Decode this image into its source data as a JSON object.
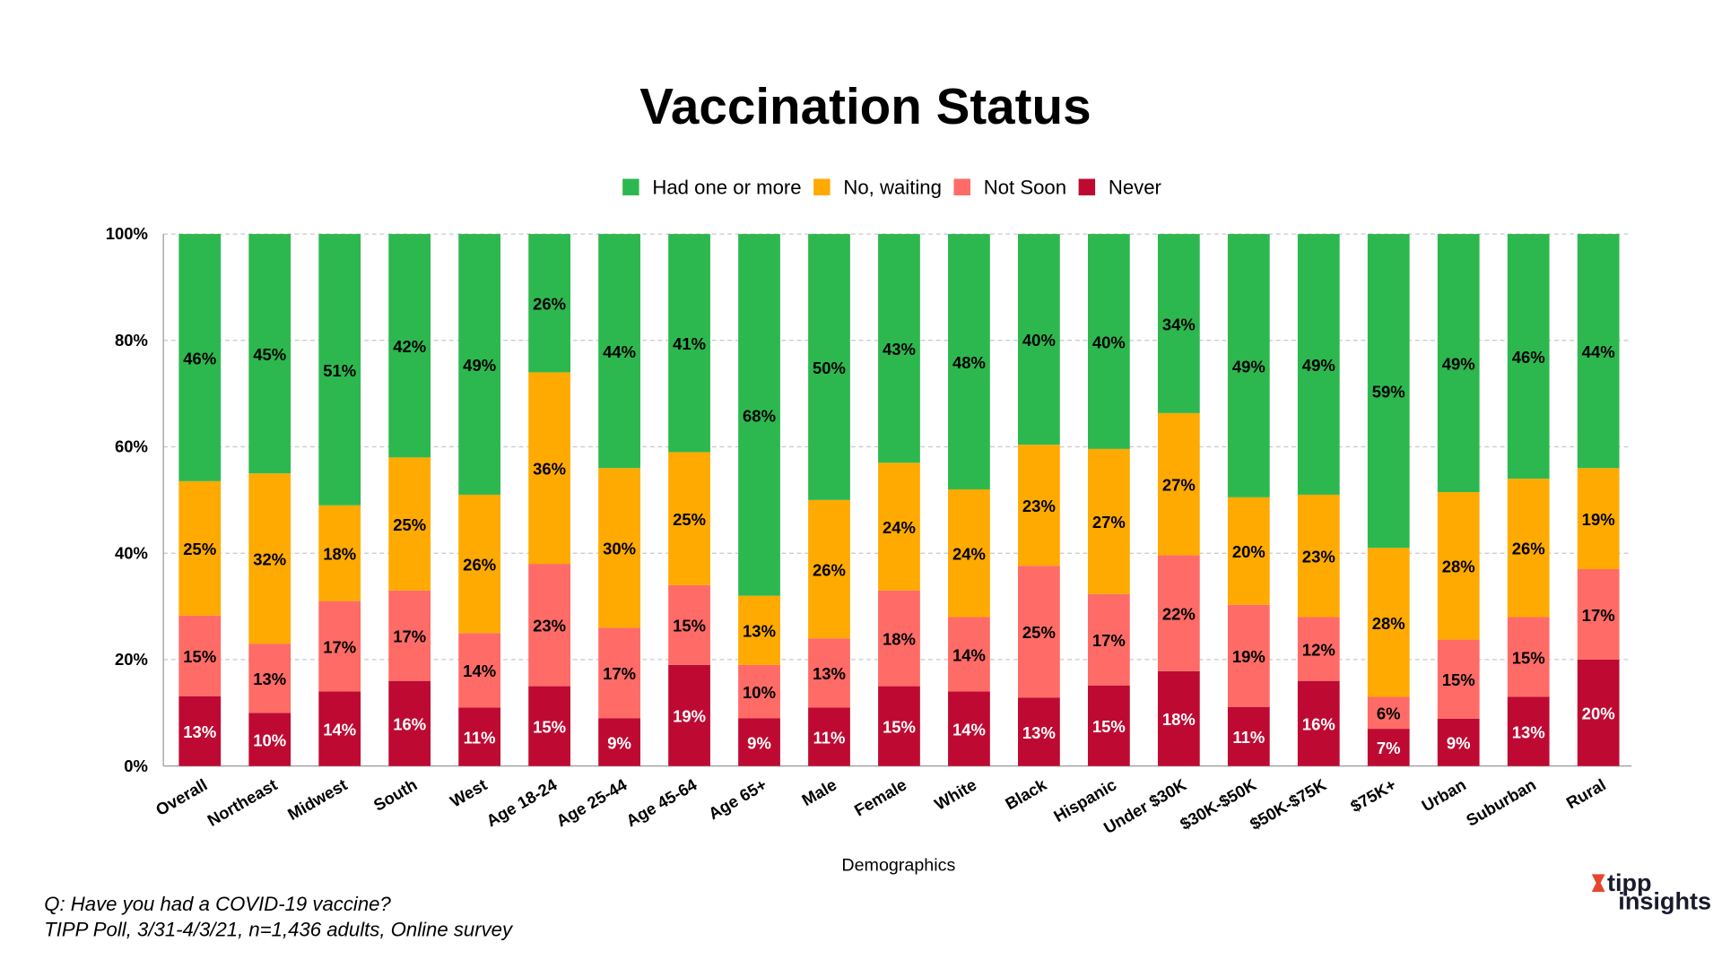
{
  "chart_data": {
    "type": "bar",
    "stacked": true,
    "title": "Vaccination Status",
    "xlabel": "Demographics",
    "ylabel": "",
    "ylim": [
      0,
      100
    ],
    "yticks": [
      "0%",
      "20%",
      "40%",
      "60%",
      "80%",
      "100%"
    ],
    "grid": true,
    "legend_position": "top",
    "categories": [
      "Overall",
      "Northeast",
      "Midwest",
      "South",
      "West",
      "Age 18-24",
      "Age 25-44",
      "Age 45-64",
      "Age 65+",
      "Male",
      "Female",
      "White",
      "Black",
      "Hispanic",
      "Under $30K",
      "$30K-$50K",
      "$50K-$75K",
      "$75K+",
      "Urban",
      "Suburban",
      "Rural"
    ],
    "series": [
      {
        "name": "Had one or more",
        "color": "#2DB84F",
        "label_color": "#000000",
        "values": [
          46,
          45,
          51,
          42,
          49,
          26,
          44,
          41,
          68,
          50,
          43,
          48,
          40,
          40,
          34,
          49,
          49,
          59,
          49,
          46,
          44
        ]
      },
      {
        "name": "No, waiting",
        "color": "#FFAA00",
        "label_color": "#000000",
        "values": [
          25,
          32,
          18,
          25,
          26,
          36,
          30,
          25,
          13,
          26,
          24,
          24,
          23,
          27,
          27,
          20,
          23,
          28,
          28,
          26,
          19
        ]
      },
      {
        "name": "Not Soon",
        "color": "#FF6B66",
        "label_color": "#000000",
        "values": [
          15,
          13,
          17,
          17,
          14,
          23,
          17,
          15,
          10,
          13,
          18,
          14,
          25,
          17,
          22,
          19,
          12,
          6,
          15,
          15,
          17
        ]
      },
      {
        "name": "Never",
        "color": "#BE0A32",
        "label_color": "#FFFFFF",
        "values": [
          13,
          10,
          14,
          16,
          11,
          15,
          9,
          19,
          9,
          11,
          15,
          14,
          13,
          15,
          18,
          11,
          16,
          7,
          9,
          13,
          20
        ]
      }
    ]
  },
  "footnote": {
    "question": "Q:  Have you had a COVID-19 vaccine?",
    "source": "TIPP Poll, 3/31-4/3/21, n=1,436 adults, Online survey"
  },
  "logo": {
    "line1": "tipp",
    "line2": "insights",
    "accent": "#E8452C"
  }
}
